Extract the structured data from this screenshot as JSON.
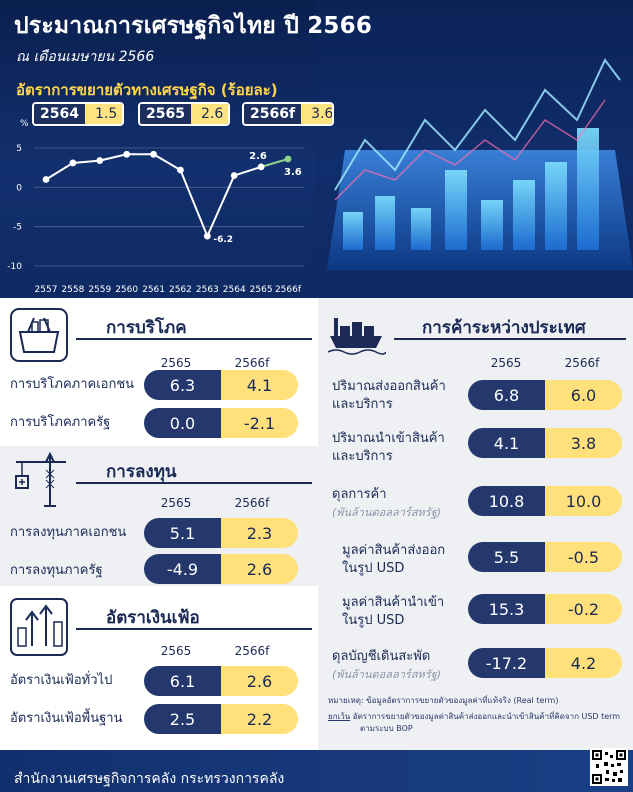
{
  "header": {
    "title": "ประมาณการเศรษฐกิจไทย ปี 2566",
    "subtitle": "ณ เดือนเมษายน 2566",
    "growth_title": "อัตราการขยายตัวทางเศรษฐกิจ (ร้อยละ)",
    "growth_boxes": [
      {
        "year": "2564",
        "value": "1.5"
      },
      {
        "year": "2565",
        "value": "2.6"
      },
      {
        "year": "2566f",
        "value": "3.6"
      }
    ]
  },
  "chart_data": {
    "type": "line",
    "ylabel": "%",
    "ylim": [
      -10,
      5
    ],
    "yticks": [
      "5",
      "0",
      "-5",
      "-10"
    ],
    "categories": [
      "2557",
      "2558",
      "2559",
      "2560",
      "2561",
      "2562",
      "2563",
      "2564",
      "2565",
      "2566f"
    ],
    "values": [
      1.0,
      3.1,
      3.4,
      4.2,
      4.2,
      2.2,
      -6.2,
      1.5,
      2.6,
      3.6
    ],
    "labels": {
      "min": "-6.2",
      "2565": "2.6",
      "2566f": "3.6"
    },
    "grid": true,
    "colors": {
      "line": "#ffffff",
      "forecast": "#8fd18a"
    }
  },
  "consumption": {
    "title": "การบริโภค",
    "col1": "2565",
    "col2": "2566f",
    "rows": [
      {
        "label": "การบริโภคภาคเอกชน",
        "v1": "6.3",
        "v2": "4.1"
      },
      {
        "label": "การบริโภคภาครัฐ",
        "v1": "0.0",
        "v2": "-2.1"
      }
    ]
  },
  "investment": {
    "title": "การลงทุน",
    "col1": "2565",
    "col2": "2566f",
    "rows": [
      {
        "label": "การลงทุนภาคเอกชน",
        "v1": "5.1",
        "v2": "2.3"
      },
      {
        "label": "การลงทุนภาครัฐ",
        "v1": "-4.9",
        "v2": "2.6"
      }
    ]
  },
  "inflation": {
    "title": "อัตราเงินเฟ้อ",
    "col1": "2565",
    "col2": "2566f",
    "rows": [
      {
        "label": "อัตราเงินเฟ้อทั่วไป",
        "v1": "6.1",
        "v2": "2.6"
      },
      {
        "label": "อัตราเงินเฟ้อพื้นฐาน",
        "v1": "2.5",
        "v2": "2.2"
      }
    ]
  },
  "trade": {
    "title": "การค้าระหว่างประเทศ",
    "col1": "2565",
    "col2": "2566f",
    "rows": [
      {
        "label1": "ปริมาณส่งออกสินค้า",
        "label2": "และบริการ",
        "sub": "",
        "v1": "6.8",
        "v2": "6.0"
      },
      {
        "label1": "ปริมาณนำเข้าสินค้า",
        "label2": "และบริการ",
        "sub": "",
        "v1": "4.1",
        "v2": "3.8"
      },
      {
        "label1": "ดุลการค้า",
        "label2": "",
        "sub": "(พันล้านดอลลาร์สหรัฐ)",
        "v1": "10.8",
        "v2": "10.0"
      },
      {
        "label1": "มูลค่าสินค้าส่งออก",
        "label2": "ในรูป USD",
        "sub": "",
        "v1": "5.5",
        "v2": "-0.5"
      },
      {
        "label1": "มูลค่าสินค้านำเข้า",
        "label2": "ในรูป USD",
        "sub": "",
        "v1": "15.3",
        "v2": "-0.2"
      },
      {
        "label1": "ดุลบัญชีเดินสะพัด",
        "label2": "",
        "sub": "(พันล้านดอลลาร์สหรัฐ)",
        "v1": "-17.2",
        "v2": "4.2"
      }
    ]
  },
  "notes": {
    "note1_head": "หมายเหตุ:",
    "note1": "ข้อมูลอัตราการขยายตัวของมูลค่าที่แท้จริง (Real term)",
    "note2_head": "ยกเว้น",
    "note2": "อัตราการขยายตัวของมูลค่าสินค้าส่งออกและนำเข้าสินค้าที่คิดจาก USD term",
    "note3": "ตามระบบ BOP"
  },
  "footer": {
    "text": "สำนักงานเศรษฐกิจการคลัง กระทรวงการคลัง"
  }
}
